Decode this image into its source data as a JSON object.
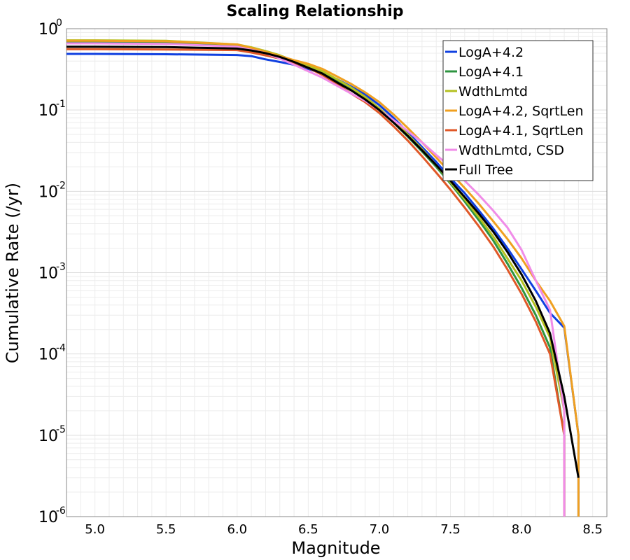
{
  "chart_data": {
    "type": "line",
    "title": "Scaling Relationship",
    "xlabel": "Magnitude",
    "ylabel": "Cumulative Rate (/yr)",
    "xlim": [
      4.8,
      8.6
    ],
    "ylim": [
      1e-06,
      1
    ],
    "yscale": "log",
    "grid": true,
    "legend_position": "top-right",
    "x_ticks": [
      5.0,
      5.5,
      6.0,
      6.5,
      7.0,
      7.5,
      8.0,
      8.5
    ],
    "x_tick_labels": [
      "5.0",
      "5.5",
      "6.0",
      "6.5",
      "7.0",
      "7.5",
      "8.0",
      "8.5"
    ],
    "y_ticks": [
      {
        "value": 1e-06,
        "base": "10",
        "exp": "-6"
      },
      {
        "value": 1e-05,
        "base": "10",
        "exp": "-5"
      },
      {
        "value": 0.0001,
        "base": "10",
        "exp": "-4"
      },
      {
        "value": 0.001,
        "base": "10",
        "exp": "-3"
      },
      {
        "value": 0.01,
        "base": "10",
        "exp": "-2"
      },
      {
        "value": 0.1,
        "base": "10",
        "exp": "-1"
      },
      {
        "value": 1,
        "base": "10",
        "exp": "0"
      }
    ],
    "series": [
      {
        "name": "LogA+4.2",
        "color": "#1040e0",
        "x": [
          4.8,
          5.0,
          5.5,
          6.0,
          6.1,
          6.2,
          6.3,
          6.4,
          6.5,
          6.6,
          6.7,
          6.8,
          6.9,
          7.0,
          7.1,
          7.2,
          7.3,
          7.4,
          7.5,
          7.6,
          7.7,
          7.8,
          7.9,
          8.0,
          8.1,
          8.2,
          8.3,
          8.4,
          8.4
        ],
        "y": [
          0.49,
          0.49,
          0.485,
          0.475,
          0.46,
          0.42,
          0.39,
          0.36,
          0.32,
          0.28,
          0.24,
          0.195,
          0.155,
          0.115,
          0.08,
          0.053,
          0.035,
          0.023,
          0.0145,
          0.0095,
          0.0058,
          0.0035,
          0.002,
          0.0011,
          0.0006,
          0.00032,
          0.00021,
          1e-05,
          1e-06
        ]
      },
      {
        "name": "LogA+4.1",
        "color": "#2e9440",
        "x": [
          4.8,
          5.0,
          5.5,
          6.0,
          6.1,
          6.2,
          6.3,
          6.4,
          6.5,
          6.6,
          6.7,
          6.8,
          6.9,
          7.0,
          7.1,
          7.2,
          7.3,
          7.4,
          7.5,
          7.6,
          7.7,
          7.8,
          7.9,
          8.0,
          8.1,
          8.2,
          8.3,
          8.3
        ],
        "y": [
          0.68,
          0.68,
          0.67,
          0.62,
          0.58,
          0.53,
          0.47,
          0.4,
          0.34,
          0.29,
          0.23,
          0.18,
          0.14,
          0.1,
          0.07,
          0.047,
          0.031,
          0.02,
          0.0125,
          0.0075,
          0.0044,
          0.0025,
          0.0013,
          0.00065,
          0.0003,
          0.00012,
          1e-05,
          1e-06
        ]
      },
      {
        "name": "WdthLmtd",
        "color": "#b4c020",
        "x": [
          4.8,
          5.0,
          5.5,
          6.0,
          6.1,
          6.2,
          6.3,
          6.4,
          6.5,
          6.6,
          6.7,
          6.8,
          6.9,
          7.0,
          7.1,
          7.2,
          7.3,
          7.4,
          7.5,
          7.6,
          7.7,
          7.8,
          7.9,
          8.0,
          8.1,
          8.2,
          8.3,
          8.3
        ],
        "y": [
          0.72,
          0.72,
          0.71,
          0.64,
          0.59,
          0.53,
          0.47,
          0.4,
          0.35,
          0.3,
          0.24,
          0.19,
          0.145,
          0.105,
          0.073,
          0.05,
          0.033,
          0.021,
          0.013,
          0.008,
          0.0048,
          0.0028,
          0.0015,
          0.0008,
          0.00038,
          0.00016,
          2e-05,
          1e-06
        ]
      },
      {
        "name": "LogA+4.2, SqrtLen",
        "color": "#f0a020",
        "x": [
          4.8,
          5.0,
          5.5,
          6.0,
          6.1,
          6.2,
          6.3,
          6.4,
          6.5,
          6.6,
          6.7,
          6.8,
          6.9,
          7.0,
          7.1,
          7.2,
          7.3,
          7.4,
          7.5,
          7.6,
          7.7,
          7.8,
          7.9,
          8.0,
          8.1,
          8.2,
          8.3,
          8.4,
          8.4
        ],
        "y": [
          0.71,
          0.71,
          0.7,
          0.64,
          0.58,
          0.52,
          0.46,
          0.41,
          0.37,
          0.32,
          0.26,
          0.21,
          0.165,
          0.125,
          0.088,
          0.06,
          0.04,
          0.026,
          0.017,
          0.011,
          0.007,
          0.0043,
          0.0026,
          0.0015,
          0.0008,
          0.00045,
          0.00022,
          1e-05,
          1e-06
        ]
      },
      {
        "name": "LogA+4.1, SqrtLen",
        "color": "#e05828",
        "x": [
          4.8,
          5.0,
          5.5,
          6.0,
          6.1,
          6.2,
          6.3,
          6.4,
          6.5,
          6.6,
          6.7,
          6.8,
          6.9,
          7.0,
          7.1,
          7.2,
          7.3,
          7.4,
          7.5,
          7.6,
          7.7,
          7.8,
          7.9,
          8.0,
          8.1,
          8.2,
          8.3,
          8.3
        ],
        "y": [
          0.56,
          0.56,
          0.555,
          0.545,
          0.51,
          0.47,
          0.43,
          0.38,
          0.33,
          0.27,
          0.21,
          0.16,
          0.125,
          0.092,
          0.063,
          0.042,
          0.027,
          0.017,
          0.0105,
          0.0063,
          0.0037,
          0.0021,
          0.0011,
          0.00055,
          0.00025,
          0.0001,
          1e-05,
          1e-06
        ]
      },
      {
        "name": "WdthLmtd, CSD",
        "color": "#f08ce8",
        "x": [
          4.8,
          5.0,
          5.5,
          6.0,
          6.1,
          6.2,
          6.3,
          6.4,
          6.5,
          6.6,
          6.7,
          6.8,
          6.9,
          7.0,
          7.1,
          7.2,
          7.3,
          7.4,
          7.5,
          7.6,
          7.7,
          7.8,
          7.9,
          8.0,
          8.1,
          8.2,
          8.3,
          8.3
        ],
        "y": [
          0.66,
          0.66,
          0.65,
          0.6,
          0.55,
          0.5,
          0.43,
          0.36,
          0.3,
          0.25,
          0.2,
          0.16,
          0.13,
          0.1,
          0.075,
          0.055,
          0.04,
          0.028,
          0.02,
          0.0135,
          0.009,
          0.0058,
          0.0036,
          0.0019,
          0.0008,
          0.00035,
          2e-05,
          1e-06
        ]
      },
      {
        "name": "Full Tree",
        "color": "#000000",
        "x": [
          4.8,
          5.0,
          5.5,
          6.0,
          6.1,
          6.2,
          6.3,
          6.4,
          6.5,
          6.6,
          6.7,
          6.8,
          6.9,
          7.0,
          7.1,
          7.2,
          7.3,
          7.4,
          7.5,
          7.6,
          7.7,
          7.8,
          7.9,
          8.0,
          8.1,
          8.2,
          8.3,
          8.4
        ],
        "y": [
          0.6,
          0.6,
          0.595,
          0.57,
          0.54,
          0.5,
          0.45,
          0.39,
          0.33,
          0.28,
          0.22,
          0.175,
          0.135,
          0.1,
          0.07,
          0.048,
          0.032,
          0.021,
          0.0135,
          0.0085,
          0.0053,
          0.0032,
          0.0018,
          0.00095,
          0.00045,
          0.00018,
          3e-05,
          3e-06
        ]
      }
    ]
  }
}
